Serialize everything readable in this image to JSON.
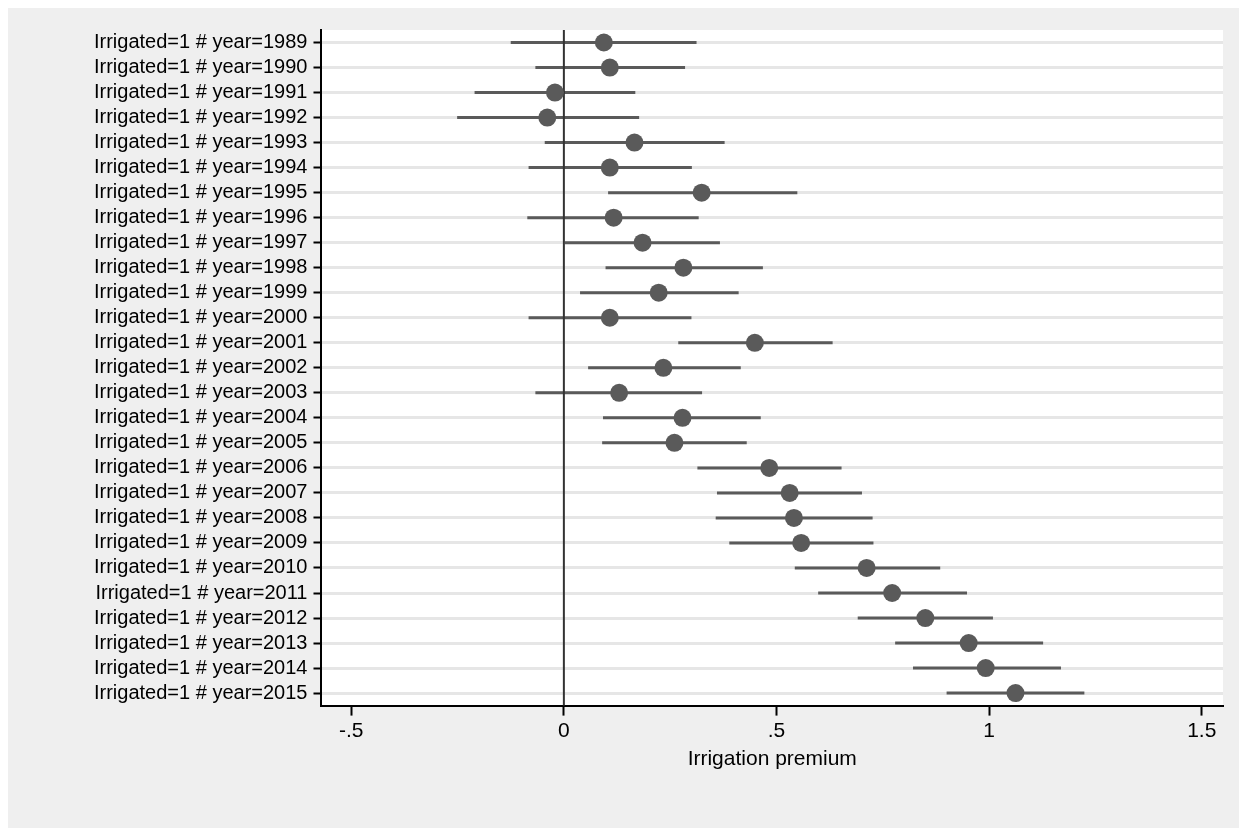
{
  "chart_data": {
    "type": "scatter",
    "orientation": "horizontal",
    "xlabel": "Irrigation premium",
    "categories": [
      "Irrigated=1 # year=1989",
      "Irrigated=1 # year=1990",
      "Irrigated=1 # year=1991",
      "Irrigated=1 # year=1992",
      "Irrigated=1 # year=1993",
      "Irrigated=1 # year=1994",
      "Irrigated=1 # year=1995",
      "Irrigated=1 # year=1996",
      "Irrigated=1 # year=1997",
      "Irrigated=1 # year=1998",
      "Irrigated=1 # year=1999",
      "Irrigated=1 # year=2000",
      "Irrigated=1 # year=2001",
      "Irrigated=1 # year=2002",
      "Irrigated=1 # year=2003",
      "Irrigated=1 # year=2004",
      "Irrigated=1 # year=2005",
      "Irrigated=1 # year=2006",
      "Irrigated=1 # year=2007",
      "Irrigated=1 # year=2008",
      "Irrigated=1 # year=2009",
      "Irrigated=1 # year=2010",
      "Irrigated=1 # year=2011",
      "Irrigated=1 # year=2012",
      "Irrigated=1 # year=2013",
      "Irrigated=1 # year=2014",
      "Irrigated=1 # year=2015"
    ],
    "series": [
      {
        "color": "#5a5a5a",
        "values": [
          0.094,
          0.108,
          -0.021,
          -0.039,
          0.166,
          0.108,
          0.324,
          0.117,
          0.185,
          0.281,
          0.223,
          0.108,
          0.449,
          0.234,
          0.13,
          0.279,
          0.26,
          0.483,
          0.531,
          0.541,
          0.558,
          0.712,
          0.772,
          0.85,
          0.952,
          0.992,
          1.062
        ],
        "errors": [
          [
            -0.125,
            0.312
          ],
          [
            -0.067,
            0.285
          ],
          [
            -0.21,
            0.168
          ],
          [
            -0.251,
            0.177
          ],
          [
            -0.045,
            0.378
          ],
          [
            -0.083,
            0.301
          ],
          [
            0.104,
            0.549
          ],
          [
            -0.086,
            0.317
          ],
          [
            0.002,
            0.367
          ],
          [
            0.098,
            0.468
          ],
          [
            0.038,
            0.411
          ],
          [
            -0.083,
            0.3
          ],
          [
            0.269,
            0.632
          ],
          [
            0.057,
            0.416
          ],
          [
            -0.067,
            0.325
          ],
          [
            0.092,
            0.463
          ],
          [
            0.09,
            0.43
          ],
          [
            0.314,
            0.653
          ],
          [
            0.36,
            0.701
          ],
          [
            0.357,
            0.726
          ],
          [
            0.389,
            0.728
          ],
          [
            0.543,
            0.885
          ],
          [
            0.598,
            0.948
          ],
          [
            0.691,
            1.009
          ],
          [
            0.779,
            1.127
          ],
          [
            0.821,
            1.169
          ],
          [
            0.9,
            1.224
          ]
        ]
      }
    ],
    "xlim": [
      -0.57,
      1.55
    ],
    "xticks": [
      {
        "value": -0.5,
        "label": "-.5"
      },
      0,
      {
        "value": 0.5,
        "label": ".5"
      },
      1,
      1.5
    ],
    "ref_lines": [
      {
        "axis": "x",
        "value": 0,
        "color": "#333333"
      }
    ],
    "grid": "y",
    "marker": "circle",
    "legend": false
  }
}
